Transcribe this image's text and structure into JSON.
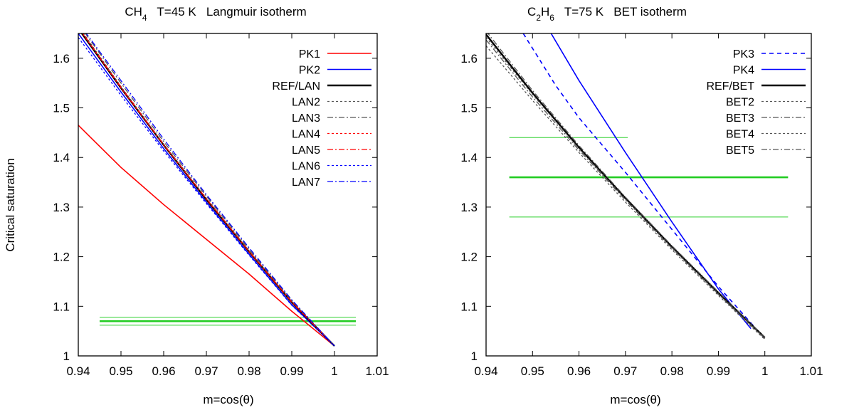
{
  "ylabel": "Critical saturation",
  "chart_data": [
    {
      "type": "line",
      "title_mol": "CH",
      "title_sub": "4",
      "title_rest": "   T=45 K   Langmuir isotherm",
      "xlabel": "m=cos(θ)",
      "xlim": [
        0.94,
        1.01
      ],
      "ylim": [
        1.0,
        1.65
      ],
      "xticks": [
        "0.94",
        "0.95",
        "0.96",
        "0.97",
        "0.98",
        "0.99",
        "1",
        "1.01"
      ],
      "xtick_values": [
        0.94,
        0.95,
        0.96,
        0.97,
        0.98,
        0.99,
        1.0,
        1.01
      ],
      "yticks": [
        "1",
        "1.1",
        "1.2",
        "1.3",
        "1.4",
        "1.5",
        "1.6"
      ],
      "ytick_values": [
        1.0,
        1.1,
        1.2,
        1.3,
        1.4,
        1.5,
        1.6
      ],
      "series": [
        {
          "name": "PK1",
          "color": "#ff0000",
          "dash": "",
          "width": 1.6,
          "x": [
            0.94,
            0.95,
            0.96,
            0.97,
            0.98,
            0.99,
            1.0
          ],
          "y": [
            1.465,
            1.38,
            1.305,
            1.235,
            1.165,
            1.09,
            1.02
          ]
        },
        {
          "name": "PK2",
          "color": "#0000ff",
          "dash": "",
          "width": 1.6,
          "x": [
            0.94,
            0.95,
            0.96,
            0.97,
            0.98,
            0.99,
            1.0
          ],
          "y": [
            1.65,
            1.532,
            1.418,
            1.31,
            1.205,
            1.103,
            1.02
          ]
        },
        {
          "name": "REF/LAN",
          "color": "#000000",
          "dash": "",
          "width": 2.4,
          "x": [
            0.94,
            0.95,
            0.96,
            0.97,
            0.98,
            0.99,
            1.0
          ],
          "y": [
            1.66,
            1.54,
            1.425,
            1.315,
            1.21,
            1.108,
            1.02
          ]
        },
        {
          "name": "LAN2",
          "color": "#555555",
          "dash": "3,3",
          "width": 1.3,
          "x": [
            0.94,
            0.95,
            0.96,
            0.97,
            0.98,
            0.99,
            1.0
          ],
          "y": [
            1.665,
            1.543,
            1.427,
            1.318,
            1.212,
            1.11,
            1.02
          ]
        },
        {
          "name": "LAN3",
          "color": "#555555",
          "dash": "8,3,2,3",
          "width": 1.3,
          "x": [
            0.94,
            0.95,
            0.96,
            0.97,
            0.98,
            0.99,
            1.0
          ],
          "y": [
            1.67,
            1.55,
            1.432,
            1.322,
            1.215,
            1.112,
            1.02
          ]
        },
        {
          "name": "LAN4",
          "color": "#ff0000",
          "dash": "3,3",
          "width": 1.3,
          "x": [
            0.94,
            0.95,
            0.96,
            0.97,
            0.98,
            0.99,
            1.0
          ],
          "y": [
            1.662,
            1.54,
            1.425,
            1.316,
            1.21,
            1.108,
            1.02
          ]
        },
        {
          "name": "LAN5",
          "color": "#ff0000",
          "dash": "8,3,2,3",
          "width": 1.3,
          "x": [
            0.94,
            0.95,
            0.96,
            0.97,
            0.98,
            0.99,
            1.0
          ],
          "y": [
            1.663,
            1.542,
            1.426,
            1.317,
            1.211,
            1.109,
            1.02
          ]
        },
        {
          "name": "LAN6",
          "color": "#0000ff",
          "dash": "3,3",
          "width": 1.3,
          "x": [
            0.94,
            0.95,
            0.96,
            0.97,
            0.98,
            0.99,
            1.0
          ],
          "y": [
            1.642,
            1.525,
            1.413,
            1.307,
            1.203,
            1.102,
            1.02
          ]
        },
        {
          "name": "LAN7",
          "color": "#0000ff",
          "dash": "8,3,2,3",
          "width": 1.3,
          "x": [
            0.94,
            0.95,
            0.96,
            0.97,
            0.98,
            0.99,
            1.0
          ],
          "y": [
            1.672,
            1.555,
            1.437,
            1.325,
            1.218,
            1.113,
            1.02
          ]
        }
      ],
      "hlines": [
        {
          "y": 1.078,
          "x0": 0.945,
          "x1": 1.005,
          "color": "#66dd66",
          "width": 1.4
        },
        {
          "y": 1.07,
          "x0": 0.945,
          "x1": 1.005,
          "color": "#22cc22",
          "width": 2.6
        },
        {
          "y": 1.062,
          "x0": 0.945,
          "x1": 1.005,
          "color": "#66dd66",
          "width": 1.4
        }
      ]
    },
    {
      "type": "line",
      "title_mol": "C",
      "title_sub": "2",
      "title_mol2": "H",
      "title_sub2": "6",
      "title_rest": "   T=75 K   BET isotherm",
      "xlabel": "m=cos(θ)",
      "xlim": [
        0.94,
        1.01
      ],
      "ylim": [
        1.0,
        1.65
      ],
      "xticks": [
        "0.94",
        "0.95",
        "0.96",
        "0.97",
        "0.98",
        "0.99",
        "1",
        "1.01"
      ],
      "xtick_values": [
        0.94,
        0.95,
        0.96,
        0.97,
        0.98,
        0.99,
        1.0,
        1.01
      ],
      "yticks": [
        "1",
        "1.1",
        "1.2",
        "1.3",
        "1.4",
        "1.5",
        "1.6"
      ],
      "ytick_values": [
        1.0,
        1.1,
        1.2,
        1.3,
        1.4,
        1.5,
        1.6
      ],
      "series": [
        {
          "name": "PK3",
          "color": "#0000ff",
          "dash": "6,5",
          "width": 1.6,
          "x": [
            0.948,
            0.955,
            0.96,
            0.97,
            0.98,
            0.99,
            1.0
          ],
          "y": [
            1.65,
            1.545,
            1.48,
            1.37,
            1.255,
            1.14,
            1.035
          ]
        },
        {
          "name": "PK4",
          "color": "#0000ff",
          "dash": "",
          "width": 1.6,
          "x": [
            0.954,
            0.96,
            0.97,
            0.98,
            0.99,
            0.997
          ],
          "y": [
            1.65,
            1.555,
            1.41,
            1.27,
            1.135,
            1.055
          ]
        },
        {
          "name": "REF/BET",
          "color": "#000000",
          "dash": "",
          "width": 2.4,
          "x": [
            0.94,
            0.95,
            0.96,
            0.97,
            0.98,
            0.99,
            1.0
          ],
          "y": [
            1.648,
            1.53,
            1.42,
            1.318,
            1.22,
            1.127,
            1.037
          ]
        },
        {
          "name": "BET2",
          "color": "#555555",
          "dash": "3,3",
          "width": 1.3,
          "x": [
            0.94,
            0.95,
            0.96,
            0.97,
            0.98,
            0.99,
            1.0
          ],
          "y": [
            1.642,
            1.527,
            1.418,
            1.316,
            1.218,
            1.125,
            1.035
          ]
        },
        {
          "name": "BET3",
          "color": "#555555",
          "dash": "8,3,2,3",
          "width": 1.3,
          "x": [
            0.94,
            0.95,
            0.96,
            0.97,
            0.98,
            0.99,
            1.0
          ],
          "y": [
            1.655,
            1.535,
            1.424,
            1.32,
            1.222,
            1.129,
            1.038
          ]
        },
        {
          "name": "BET4",
          "color": "#555555",
          "dash": "3,3",
          "width": 1.3,
          "x": [
            0.94,
            0.95,
            0.96,
            0.97,
            0.98,
            0.99,
            1.0
          ],
          "y": [
            1.625,
            1.515,
            1.41,
            1.31,
            1.214,
            1.122,
            1.033
          ]
        },
        {
          "name": "BET5",
          "color": "#555555",
          "dash": "8,3,2,3",
          "width": 1.3,
          "x": [
            0.94,
            0.95,
            0.96,
            0.97,
            0.98,
            0.99,
            1.0
          ],
          "y": [
            1.637,
            1.522,
            1.415,
            1.314,
            1.217,
            1.124,
            1.035
          ]
        }
      ],
      "hlines": [
        {
          "y": 1.44,
          "x0": 0.945,
          "x1": 0.9705,
          "color": "#66dd66",
          "width": 1.4
        },
        {
          "y": 1.36,
          "x0": 0.945,
          "x1": 1.005,
          "color": "#22cc22",
          "width": 2.6
        },
        {
          "y": 1.28,
          "x0": 0.945,
          "x1": 1.005,
          "color": "#66dd66",
          "width": 1.4
        }
      ]
    }
  ]
}
